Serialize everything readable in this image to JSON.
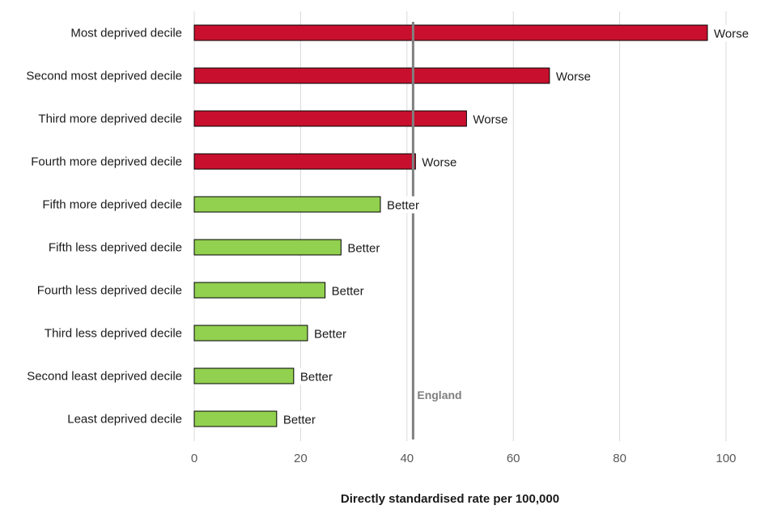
{
  "chart_data": {
    "type": "bar",
    "orientation": "horizontal",
    "xlabel": "Directly  standardised  rate per 100,000",
    "xlim": [
      0,
      100
    ],
    "xticks": [
      "0",
      "20",
      "40",
      "60",
      "80",
      "100"
    ],
    "grid": true,
    "categories": [
      "Most deprived decile",
      "Second most deprived decile",
      "Third more deprived decile",
      "Fourth more deprived decile",
      "Fifth more deprived decile",
      "Fifth less deprived decile",
      "Fourth less deprived decile",
      "Third less deprived decile",
      "Second least deprived decile",
      "Least deprived decile"
    ],
    "values": [
      96.5,
      66.8,
      51.2,
      41.6,
      35.0,
      27.6,
      24.6,
      21.3,
      18.7,
      15.5
    ],
    "labels": [
      "Worse",
      "Worse",
      "Worse",
      "Worse",
      "Better",
      "Better",
      "Better",
      "Better",
      "Better",
      "Better"
    ],
    "colors": {
      "Worse": "#c8102e",
      "Better": "#92d050"
    },
    "reference": {
      "label": "England",
      "value": 41.0,
      "color": "#808080"
    }
  }
}
